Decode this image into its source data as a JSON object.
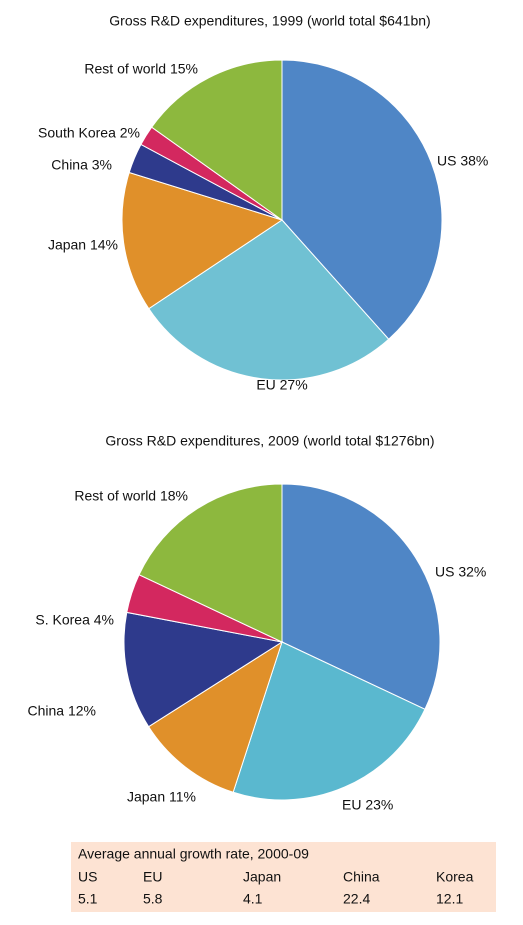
{
  "chart_data": [
    {
      "type": "pie",
      "title": "Gross R&D expenditures, 1999 (world total $641bn)",
      "values": [
        38,
        27,
        14,
        3,
        2,
        15
      ],
      "value_labels": [
        "US 38%",
        "EU 27%",
        "Japan 14%",
        "China 3%",
        "South Korea 2%",
        "Rest of world 15%"
      ],
      "colors": [
        "#4f86c6",
        "#70c1d3",
        "#e0902a",
        "#2e3a8c",
        "#d3285f",
        "#8db83e"
      ]
    },
    {
      "type": "pie",
      "title": "Gross R&D expenditures, 2009 (world total $1276bn)",
      "values": [
        32,
        23,
        11,
        12,
        4,
        18
      ],
      "value_labels": [
        "US 32%",
        "EU 23%",
        "Japan 11%",
        "China 12%",
        "S. Korea 4%",
        "Rest of world 18%"
      ],
      "colors": [
        "#4f86c6",
        "#5ab8cf",
        "#e0902a",
        "#2e3a8c",
        "#d3285f",
        "#8db83e"
      ]
    }
  ],
  "table": {
    "title": "Average annual growth rate, 2000-09",
    "header": [
      "US",
      "EU",
      "Japan",
      "China",
      "Korea"
    ],
    "rows": [
      [
        "5.1",
        "5.8",
        "4.1",
        "22.4",
        "12.1"
      ]
    ]
  }
}
